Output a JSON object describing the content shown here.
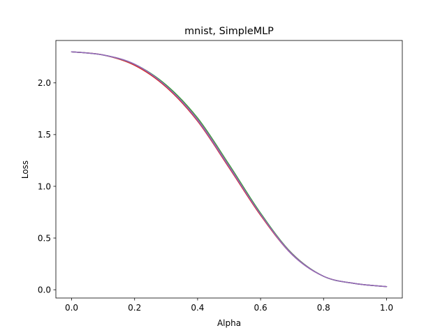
{
  "chart_data": {
    "type": "line",
    "title": "mnist, SimpleMLP",
    "xlabel": "Alpha",
    "ylabel": "Loss",
    "xlim": [
      -0.05,
      1.05
    ],
    "ylim": [
      -0.08,
      2.41
    ],
    "xticks": [
      0.0,
      0.2,
      0.4,
      0.6,
      0.8,
      1.0
    ],
    "xtick_labels": [
      "0.0",
      "0.2",
      "0.4",
      "0.6",
      "0.8",
      "1.0"
    ],
    "yticks": [
      0.0,
      0.5,
      1.0,
      1.5,
      2.0
    ],
    "ytick_labels": [
      "0.0",
      "0.5",
      "1.0",
      "1.5",
      "2.0"
    ],
    "grid": false,
    "legend": "none",
    "x": [
      0.0,
      0.1,
      0.2,
      0.3,
      0.4,
      0.5,
      0.6,
      0.7,
      0.8,
      0.9,
      1.0
    ],
    "series": [
      {
        "color": "#d62728",
        "values": [
          2.3,
          2.27,
          2.17,
          1.96,
          1.63,
          1.18,
          0.72,
          0.34,
          0.13,
          0.06,
          0.03
        ]
      },
      {
        "color": "#2ca02c",
        "values": [
          2.3,
          2.27,
          2.18,
          1.98,
          1.66,
          1.21,
          0.74,
          0.35,
          0.13,
          0.06,
          0.03
        ]
      },
      {
        "color": "#7f7f7f",
        "values": [
          2.3,
          2.27,
          2.18,
          1.97,
          1.65,
          1.2,
          0.73,
          0.35,
          0.13,
          0.06,
          0.03
        ]
      },
      {
        "color": "#9467bd",
        "values": [
          2.3,
          2.27,
          2.18,
          1.97,
          1.64,
          1.19,
          0.73,
          0.34,
          0.13,
          0.06,
          0.03
        ]
      }
    ]
  }
}
